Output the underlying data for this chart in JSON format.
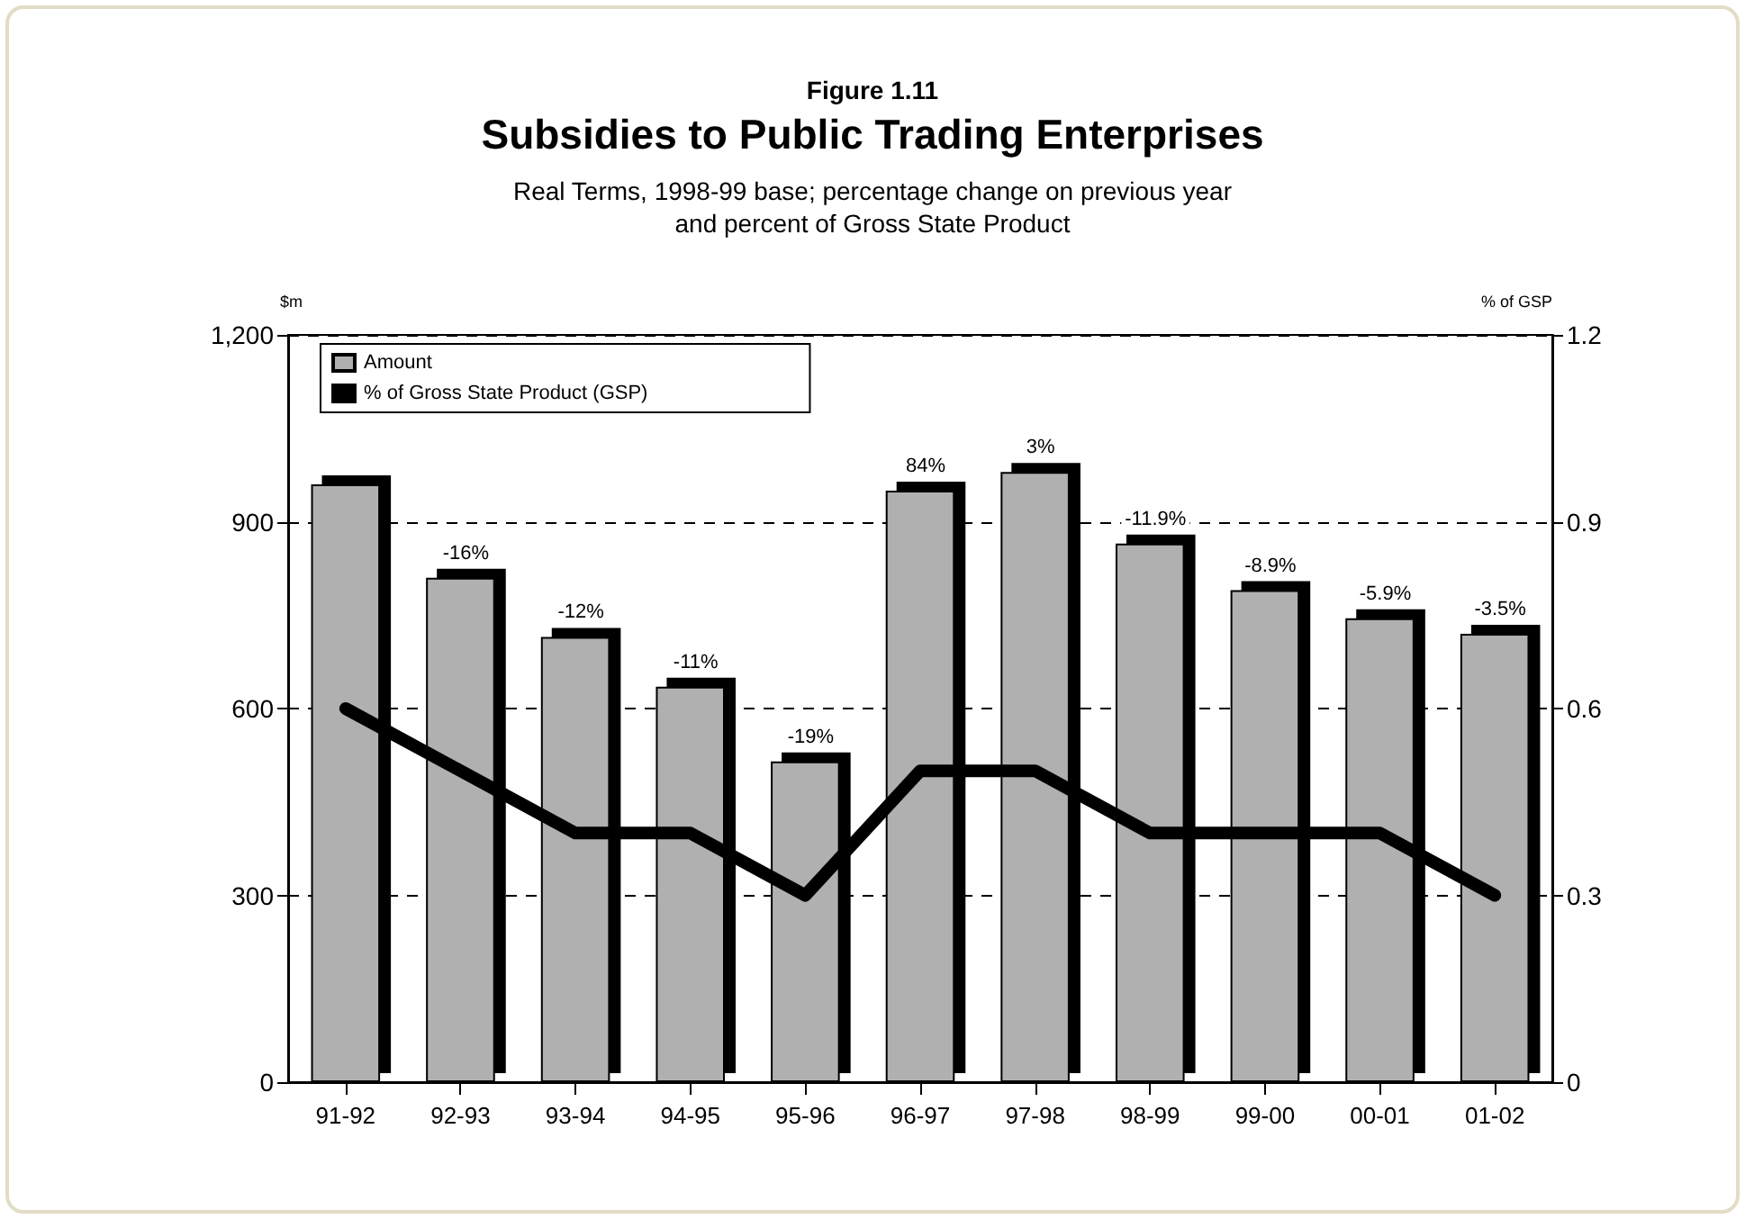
{
  "chart_data": {
    "type": "bar",
    "annotations": [
      "Figure 1.11",
      {
        "text": "-16%",
        "x": "92-93",
        "y": 810
      },
      {
        "text": "-12%",
        "x": "93-94",
        "y": 715
      },
      {
        "text": "-11%",
        "x": "94-95",
        "y": 635
      },
      {
        "text": "-19%",
        "x": "95-96",
        "y": 515
      },
      {
        "text": "84%",
        "x": "96-97",
        "y": 950
      },
      {
        "text": "3%",
        "x": "97-98",
        "y": 980
      },
      {
        "text": "-11.9%",
        "x": "98-99",
        "y": 865
      },
      {
        "text": "-8.9%",
        "x": "99-00",
        "y": 790
      },
      {
        "text": "-5.9%",
        "x": "00-01",
        "y": 745
      },
      {
        "text": "-3.5%",
        "x": "01-02",
        "y": 720
      }
    ],
    "title": "Subsidies to Public Trading Enterprises",
    "subtitle": "Real Terms, 1998-99 base; percentage change on previous year\nand percent of Gross State Product",
    "ylabel": "$m",
    "y2label": "% of GSP",
    "categories": [
      "91-92",
      "92-93",
      "93-94",
      "94-95",
      "95-96",
      "96-97",
      "97-98",
      "98-99",
      "99-00",
      "00-01",
      "01-02"
    ],
    "series": [
      {
        "name": "Amount",
        "color": "#b0b0b0",
        "values": [
          960,
          810,
          715,
          635,
          515,
          950,
          980,
          865,
          790,
          745,
          720
        ]
      },
      {
        "name": "% of Gross State Product (GSP)",
        "type": "line",
        "axis": "y2",
        "color": "#000000",
        "values": [
          0.6,
          0.5,
          0.4,
          0.4,
          0.3,
          0.5,
          0.5,
          0.4,
          0.4,
          0.4,
          0.3
        ]
      }
    ],
    "ylim": [
      0,
      1200
    ],
    "yticks": [
      0,
      300,
      600,
      900,
      {
        "value": 1200,
        "label": "1,200"
      }
    ],
    "y2lim": [
      0,
      1.2
    ],
    "y2ticks": [
      0,
      0.3,
      0.6,
      0.9,
      1.2
    ],
    "grid": "y",
    "legend": "top left",
    "line_style": "solid"
  }
}
